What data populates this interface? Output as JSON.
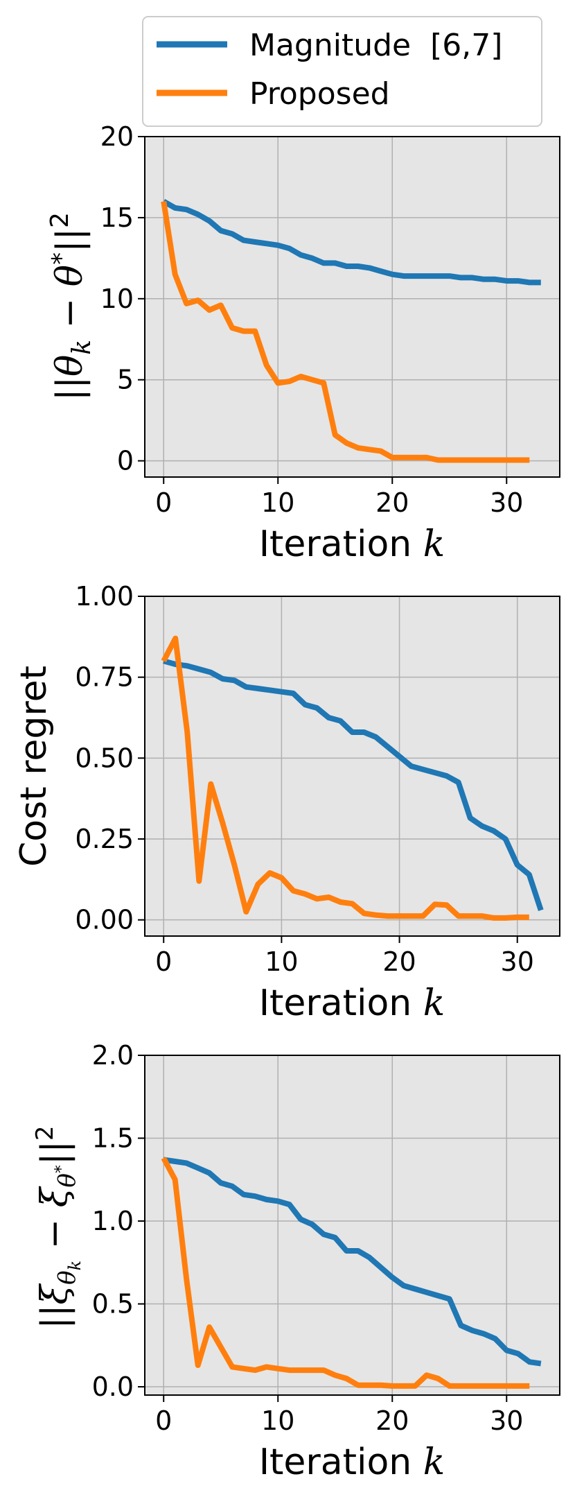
{
  "legend": {
    "entries": [
      {
        "label": "Magnitude  [6,7]",
        "color": "#1f77b4"
      },
      {
        "label": "Proposed",
        "color": "#ff7f0e"
      }
    ]
  },
  "colors": {
    "plot_background": "#e5e5e5",
    "grid": "#b0b0b0"
  },
  "chart_data": [
    {
      "type": "line",
      "xlabel": "Iteration k",
      "ylabel": "||θk − θ*||²",
      "xlim": [
        -1.65,
        34.65
      ],
      "ylim": [
        -1,
        20
      ],
      "xticks": [
        0,
        10,
        20,
        30
      ],
      "yticks": [
        0,
        5,
        10,
        15,
        20
      ],
      "xtick_labels": [
        "0",
        "10",
        "20",
        "30"
      ],
      "ytick_labels": [
        "0",
        "5",
        "10",
        "15",
        "20"
      ],
      "grid": true,
      "series": [
        {
          "name": "Magnitude  [6,7]",
          "color": "#1f77b4",
          "x": [
            0,
            1,
            2,
            3,
            4,
            5,
            6,
            7,
            8,
            9,
            10,
            11,
            12,
            13,
            14,
            15,
            16,
            17,
            18,
            19,
            20,
            21,
            22,
            23,
            24,
            25,
            26,
            27,
            28,
            29,
            30,
            31,
            32,
            33
          ],
          "y": [
            16.0,
            15.6,
            15.5,
            15.2,
            14.8,
            14.2,
            14.0,
            13.6,
            13.5,
            13.4,
            13.3,
            13.1,
            12.7,
            12.5,
            12.2,
            12.2,
            12.0,
            12.0,
            11.9,
            11.7,
            11.5,
            11.4,
            11.4,
            11.4,
            11.4,
            11.4,
            11.3,
            11.3,
            11.2,
            11.2,
            11.1,
            11.1,
            11.0,
            11.0
          ]
        },
        {
          "name": "Proposed",
          "color": "#ff7f0e",
          "x": [
            0,
            1,
            2,
            3,
            4,
            5,
            6,
            7,
            8,
            9,
            10,
            11,
            12,
            13,
            14,
            15,
            16,
            17,
            18,
            19,
            20,
            21,
            22,
            23,
            24,
            25,
            26,
            27,
            28,
            29,
            30,
            31,
            32
          ],
          "y": [
            16.0,
            11.5,
            9.7,
            9.9,
            9.3,
            9.6,
            8.2,
            8.0,
            8.0,
            5.9,
            4.8,
            4.9,
            5.2,
            5.0,
            4.8,
            1.6,
            1.1,
            0.8,
            0.7,
            0.6,
            0.2,
            0.2,
            0.2,
            0.2,
            0.05,
            0.05,
            0.05,
            0.05,
            0.05,
            0.05,
            0.05,
            0.05,
            0.05
          ]
        }
      ]
    },
    {
      "type": "line",
      "xlabel": "Iteration k",
      "ylabel": "Cost regret",
      "xlim": [
        -1.6,
        33.6
      ],
      "ylim": [
        -0.05,
        1.0
      ],
      "xticks": [
        0,
        10,
        20,
        30
      ],
      "yticks": [
        0.0,
        0.25,
        0.5,
        0.75,
        1.0
      ],
      "xtick_labels": [
        "0",
        "10",
        "20",
        "30"
      ],
      "ytick_labels": [
        "0.00",
        "0.25",
        "0.50",
        "0.75",
        "1.00"
      ],
      "grid": true,
      "series": [
        {
          "name": "Magnitude  [6,7]",
          "color": "#1f77b4",
          "x": [
            0,
            1,
            2,
            3,
            4,
            5,
            6,
            7,
            8,
            9,
            10,
            11,
            12,
            13,
            14,
            15,
            16,
            17,
            18,
            19,
            20,
            21,
            22,
            23,
            24,
            25,
            26,
            27,
            28,
            29,
            30,
            31,
            32
          ],
          "y": [
            0.8,
            0.79,
            0.785,
            0.775,
            0.765,
            0.745,
            0.74,
            0.72,
            0.715,
            0.71,
            0.705,
            0.7,
            0.665,
            0.655,
            0.625,
            0.615,
            0.58,
            0.58,
            0.565,
            0.535,
            0.505,
            0.475,
            0.465,
            0.455,
            0.445,
            0.425,
            0.315,
            0.29,
            0.275,
            0.25,
            0.17,
            0.14,
            0.03
          ]
        },
        {
          "name": "Proposed",
          "color": "#ff7f0e",
          "x": [
            0,
            1,
            2,
            3,
            4,
            5,
            6,
            7,
            8,
            9,
            10,
            11,
            12,
            13,
            14,
            15,
            16,
            17,
            18,
            19,
            20,
            21,
            22,
            23,
            24,
            25,
            26,
            27,
            28,
            29,
            30,
            31
          ],
          "y": [
            0.8,
            0.87,
            0.58,
            0.12,
            0.42,
            0.3,
            0.17,
            0.025,
            0.11,
            0.145,
            0.13,
            0.09,
            0.08,
            0.065,
            0.07,
            0.055,
            0.05,
            0.02,
            0.015,
            0.012,
            0.012,
            0.012,
            0.012,
            0.048,
            0.046,
            0.012,
            0.012,
            0.012,
            0.006,
            0.006,
            0.008,
            0.008
          ]
        }
      ]
    },
    {
      "type": "line",
      "xlabel": "Iteration k",
      "ylabel": "||ξθk − ξθ*||²",
      "xlim": [
        -1.65,
        34.65
      ],
      "ylim": [
        -0.05,
        2.0
      ],
      "xticks": [
        0,
        10,
        20,
        30
      ],
      "yticks": [
        0.0,
        0.5,
        1.0,
        1.5,
        2.0
      ],
      "xtick_labels": [
        "0",
        "10",
        "20",
        "30"
      ],
      "ytick_labels": [
        "0.0",
        "0.5",
        "1.0",
        "1.5",
        "2.0"
      ],
      "grid": true,
      "series": [
        {
          "name": "Magnitude  [6,7]",
          "color": "#1f77b4",
          "x": [
            0,
            1,
            2,
            3,
            4,
            5,
            6,
            7,
            8,
            9,
            10,
            11,
            12,
            13,
            14,
            15,
            16,
            17,
            18,
            19,
            20,
            21,
            22,
            23,
            24,
            25,
            26,
            27,
            28,
            29,
            30,
            31,
            32,
            33
          ],
          "y": [
            1.37,
            1.36,
            1.35,
            1.32,
            1.29,
            1.23,
            1.21,
            1.16,
            1.15,
            1.13,
            1.12,
            1.1,
            1.01,
            0.98,
            0.92,
            0.9,
            0.82,
            0.82,
            0.78,
            0.72,
            0.66,
            0.61,
            0.59,
            0.57,
            0.55,
            0.53,
            0.37,
            0.34,
            0.32,
            0.29,
            0.22,
            0.2,
            0.15,
            0.14
          ]
        },
        {
          "name": "Proposed",
          "color": "#ff7f0e",
          "x": [
            0,
            1,
            2,
            3,
            4,
            5,
            6,
            7,
            8,
            9,
            10,
            11,
            12,
            13,
            14,
            15,
            16,
            17,
            18,
            19,
            20,
            21,
            22,
            23,
            24,
            25,
            26,
            27,
            28,
            29,
            30,
            31,
            32
          ],
          "y": [
            1.38,
            1.25,
            0.65,
            0.13,
            0.36,
            0.24,
            0.12,
            0.11,
            0.1,
            0.12,
            0.11,
            0.1,
            0.1,
            0.1,
            0.1,
            0.07,
            0.05,
            0.01,
            0.01,
            0.01,
            0.005,
            0.005,
            0.005,
            0.07,
            0.05,
            0.005,
            0.005,
            0.005,
            0.005,
            0.005,
            0.005,
            0.005,
            0.005
          ]
        }
      ]
    }
  ]
}
